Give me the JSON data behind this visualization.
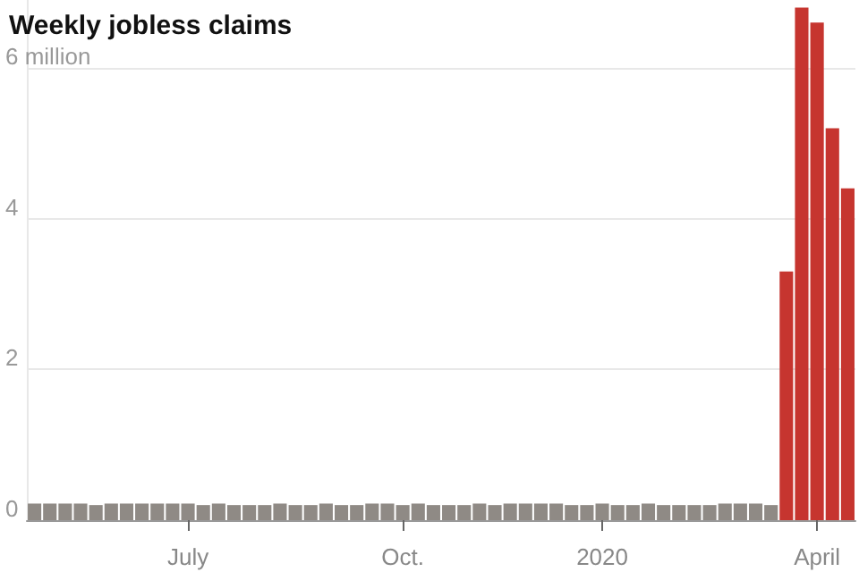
{
  "chart_data": {
    "type": "bar",
    "title": "Weekly jobless claims",
    "categories": [
      null,
      null,
      null,
      null,
      null,
      null,
      null,
      null,
      null,
      null,
      "July",
      null,
      null,
      null,
      null,
      null,
      null,
      null,
      null,
      null,
      null,
      null,
      null,
      null,
      "Oct.",
      null,
      null,
      null,
      null,
      null,
      null,
      null,
      null,
      null,
      null,
      null,
      null,
      "2020",
      null,
      null,
      null,
      null,
      null,
      null,
      null,
      null,
      null,
      null,
      null,
      null,
      null,
      "April",
      null,
      null
    ],
    "values": [
      0.22,
      0.22,
      0.22,
      0.22,
      0.2,
      0.22,
      0.22,
      0.22,
      0.22,
      0.22,
      0.22,
      0.2,
      0.22,
      0.2,
      0.2,
      0.2,
      0.22,
      0.2,
      0.2,
      0.22,
      0.2,
      0.2,
      0.22,
      0.22,
      0.2,
      0.22,
      0.2,
      0.2,
      0.2,
      0.22,
      0.2,
      0.22,
      0.22,
      0.22,
      0.22,
      0.2,
      0.2,
      0.22,
      0.2,
      0.2,
      0.22,
      0.2,
      0.2,
      0.2,
      0.2,
      0.22,
      0.22,
      0.22,
      0.2,
      3.3,
      6.8,
      6.6,
      5.2,
      4.4
    ],
    "colors": [
      "#8f8a85",
      "#8f8a85",
      "#8f8a85",
      "#8f8a85",
      "#8f8a85",
      "#8f8a85",
      "#8f8a85",
      "#8f8a85",
      "#8f8a85",
      "#8f8a85",
      "#8f8a85",
      "#8f8a85",
      "#8f8a85",
      "#8f8a85",
      "#8f8a85",
      "#8f8a85",
      "#8f8a85",
      "#8f8a85",
      "#8f8a85",
      "#8f8a85",
      "#8f8a85",
      "#8f8a85",
      "#8f8a85",
      "#8f8a85",
      "#8f8a85",
      "#8f8a85",
      "#8f8a85",
      "#8f8a85",
      "#8f8a85",
      "#8f8a85",
      "#8f8a85",
      "#8f8a85",
      "#8f8a85",
      "#8f8a85",
      "#8f8a85",
      "#8f8a85",
      "#8f8a85",
      "#8f8a85",
      "#8f8a85",
      "#8f8a85",
      "#8f8a85",
      "#8f8a85",
      "#8f8a85",
      "#8f8a85",
      "#8f8a85",
      "#8f8a85",
      "#8f8a85",
      "#8f8a85",
      "#8f8a85",
      "#c6352f",
      "#c6352f",
      "#c6352f",
      "#c6352f",
      "#c6352f"
    ],
    "ylim": [
      0,
      6.9
    ],
    "yticks": [
      0,
      2,
      4,
      {
        "value": 6,
        "label": "6 million"
      }
    ],
    "grid": "y"
  }
}
